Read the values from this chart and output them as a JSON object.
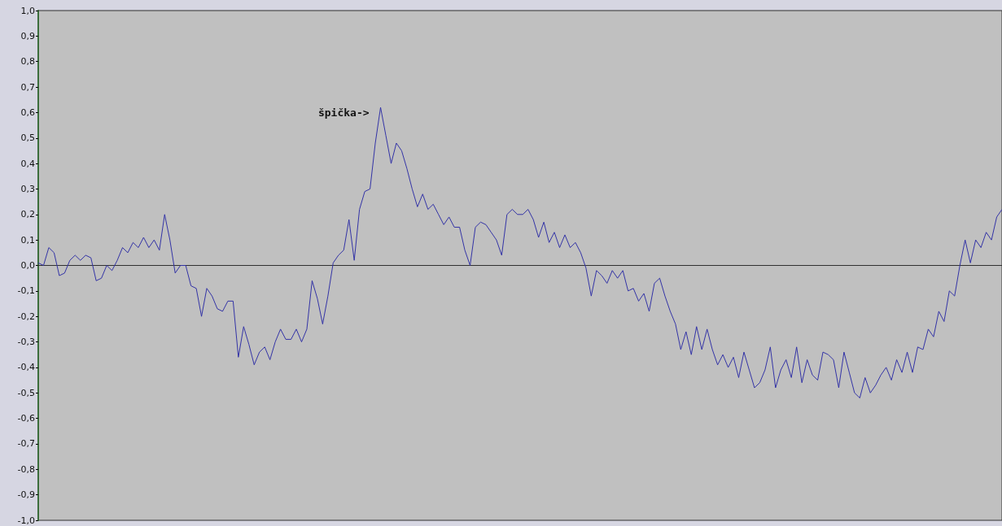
{
  "chart_data": {
    "type": "line",
    "categories": [
      null,
      null,
      null,
      null,
      null,
      null,
      null,
      null,
      null,
      null,
      null,
      null,
      null,
      null,
      null,
      null,
      null,
      null,
      null,
      null,
      null,
      null,
      null,
      null,
      null,
      null,
      null,
      null,
      null,
      null,
      null,
      null,
      null,
      null,
      null,
      null,
      null,
      null,
      null,
      null,
      null,
      null,
      null,
      null,
      null,
      null,
      null,
      null,
      null,
      null,
      null,
      null,
      null,
      null,
      null,
      null,
      null,
      null,
      null,
      null,
      null,
      null,
      null,
      null,
      null,
      null,
      null,
      null,
      null,
      null,
      null,
      null,
      null,
      null,
      null,
      null,
      null,
      null,
      null,
      null,
      null,
      null,
      null,
      null,
      null,
      null,
      null,
      null,
      null,
      null,
      null,
      null,
      null,
      null,
      null,
      null,
      null,
      null,
      null,
      null,
      null,
      null,
      null,
      null,
      null,
      null,
      null,
      null,
      null,
      null,
      null,
      null,
      null,
      null,
      null,
      null,
      null,
      null,
      null,
      null,
      null,
      null,
      null,
      null,
      null,
      null,
      null,
      null,
      null,
      null,
      null,
      null,
      null,
      null,
      null,
      null,
      null,
      null,
      null,
      null,
      null,
      null,
      null,
      null,
      null,
      null,
      null,
      null,
      null,
      null,
      null,
      null,
      null,
      null,
      null,
      null,
      null,
      null,
      null,
      null,
      null,
      null,
      null,
      null,
      null,
      null,
      null,
      null,
      null,
      null,
      null,
      null,
      null,
      null,
      null,
      null,
      null,
      null,
      null,
      null,
      null,
      null,
      null,
      null
    ],
    "series": [
      {
        "color": "#3333a6",
        "values": [
          0.01,
          0.0,
          0.07,
          0.05,
          -0.04,
          -0.03,
          0.02,
          0.04,
          0.02,
          0.04,
          0.03,
          -0.06,
          -0.05,
          0.0,
          -0.02,
          0.02,
          0.07,
          0.05,
          0.09,
          0.07,
          0.11,
          0.07,
          0.1,
          0.06,
          0.2,
          0.1,
          -0.03,
          0.0,
          0.0,
          -0.08,
          -0.09,
          -0.2,
          -0.09,
          -0.12,
          -0.17,
          -0.18,
          -0.14,
          -0.14,
          -0.36,
          -0.24,
          -0.31,
          -0.39,
          -0.34,
          -0.32,
          -0.37,
          -0.3,
          -0.25,
          -0.29,
          -0.29,
          -0.25,
          -0.3,
          -0.25,
          -0.06,
          -0.13,
          -0.23,
          -0.12,
          0.01,
          0.04,
          0.06,
          0.18,
          0.02,
          0.22,
          0.29,
          0.3,
          0.48,
          0.62,
          0.51,
          0.4,
          0.48,
          0.45,
          0.38,
          0.3,
          0.23,
          0.28,
          0.22,
          0.24,
          0.2,
          0.16,
          0.19,
          0.15,
          0.15,
          0.06,
          0.0,
          0.15,
          0.17,
          0.16,
          0.13,
          0.1,
          0.04,
          0.2,
          0.22,
          0.2,
          0.2,
          0.22,
          0.18,
          0.11,
          0.17,
          0.09,
          0.13,
          0.07,
          0.12,
          0.07,
          0.09,
          0.05,
          -0.01,
          -0.12,
          -0.02,
          -0.04,
          -0.07,
          -0.02,
          -0.05,
          -0.02,
          -0.1,
          -0.09,
          -0.14,
          -0.11,
          -0.18,
          -0.07,
          -0.05,
          -0.12,
          -0.18,
          -0.23,
          -0.33,
          -0.26,
          -0.35,
          -0.24,
          -0.33,
          -0.25,
          -0.33,
          -0.39,
          -0.35,
          -0.4,
          -0.36,
          -0.44,
          -0.34,
          -0.41,
          -0.48,
          -0.46,
          -0.41,
          -0.32,
          -0.48,
          -0.41,
          -0.37,
          -0.44,
          -0.32,
          -0.46,
          -0.37,
          -0.43,
          -0.45,
          -0.34,
          -0.35,
          -0.37,
          -0.48,
          -0.34,
          -0.42,
          -0.5,
          -0.52,
          -0.44,
          -0.5,
          -0.47,
          -0.43,
          -0.4,
          -0.45,
          -0.37,
          -0.42,
          -0.34,
          -0.42,
          -0.32,
          -0.33,
          -0.25,
          -0.28,
          -0.18,
          -0.22,
          -0.1,
          -0.12,
          0.0,
          0.1,
          0.01,
          0.1,
          0.07,
          0.13,
          0.1,
          0.19,
          0.22
        ]
      }
    ],
    "ylim": [
      -1,
      1
    ],
    "yticks": [
      {
        "value": 1,
        "label": "1,0"
      },
      {
        "value": 0.9,
        "label": "0,9"
      },
      {
        "value": 0.8,
        "label": "0,8"
      },
      {
        "value": 0.7,
        "label": "0,7"
      },
      {
        "value": 0.6,
        "label": "0,6"
      },
      {
        "value": 0.5,
        "label": "0,5"
      },
      {
        "value": 0.4,
        "label": "0,4"
      },
      {
        "value": 0.3,
        "label": "0,3"
      },
      {
        "value": 0.2,
        "label": "0,2"
      },
      {
        "value": 0.1,
        "label": "0,1"
      },
      {
        "value": 0,
        "label": "0,0"
      },
      {
        "value": -0.1,
        "label": "-0,1"
      },
      {
        "value": -0.2,
        "label": "-0,2"
      },
      {
        "value": -0.3,
        "label": "-0,3"
      },
      {
        "value": -0.4,
        "label": "-0,4"
      },
      {
        "value": -0.5,
        "label": "-0,5"
      },
      {
        "value": -0.6,
        "label": "-0,6"
      },
      {
        "value": -0.7,
        "label": "-0,7"
      },
      {
        "value": -0.8,
        "label": "-0,8"
      },
      {
        "value": -0.9,
        "label": "-0,9"
      },
      {
        "value": -1,
        "label": "-1,0"
      }
    ],
    "tick_labels": "y",
    "annotations": [
      "špička->"
    ],
    "line_style": "solid"
  }
}
